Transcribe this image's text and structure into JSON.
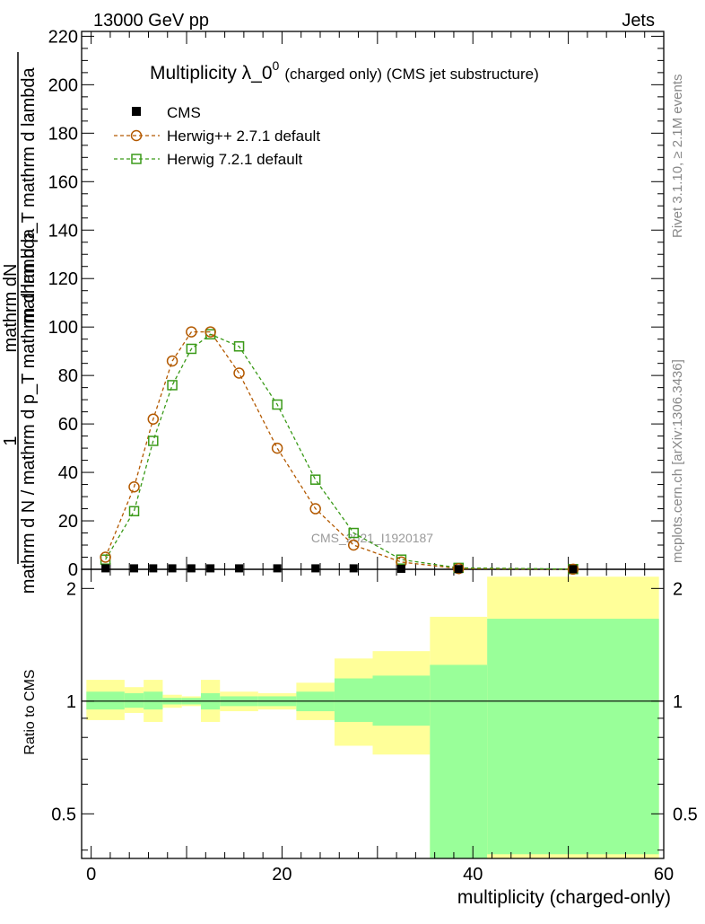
{
  "header": {
    "left": "13000 GeV pp",
    "right": "Jets"
  },
  "side": {
    "rivet": "Rivet 3.1.10, ≥ 2.1M events",
    "mcplots": "mcplots.cern.ch [arXiv:1306.3436]"
  },
  "watermark": "CMS_2021_I1920187",
  "chart_data": {
    "type": "line",
    "title": "Multiplicity λ_0",
    "title_sup": "0",
    "title_suffix": "(charged only) (CMS jet substructure)",
    "ylabel": {
      "num": "mathrm dN",
      "num2": "mathrm d p_T mathrm d lambda",
      "frac_prefix": "1",
      "den": "mathrm d N / mathrm d p_T mathrm d lambda"
    },
    "xlabel": "multiplicity (charged-only)",
    "xlim": [
      -1,
      60
    ],
    "ylim": [
      0,
      222
    ],
    "x_ticks": [
      0,
      20,
      40,
      60
    ],
    "y_ticks": [
      0,
      20,
      40,
      60,
      80,
      100,
      120,
      140,
      160,
      180,
      200,
      220
    ],
    "legend": [
      "CMS",
      "Herwig++ 2.7.1 default",
      "Herwig 7.2.1 default"
    ],
    "legend_position": "top-left",
    "colors": {
      "cms": "#000000",
      "herwigpp": "#b35900",
      "herwig7": "#3a9a18"
    },
    "cms": {
      "x": [
        1.5,
        4.5,
        6.5,
        8.5,
        10.5,
        12.5,
        15.5,
        19.5,
        23.5,
        27.5,
        32.5,
        38.5,
        50.5
      ],
      "y": [
        0.4,
        0.4,
        0.4,
        0.4,
        0.4,
        0.4,
        0.4,
        0.4,
        0.4,
        0.4,
        0.2,
        0.1,
        0.05
      ]
    },
    "herwigpp": {
      "x": [
        1.5,
        4.5,
        6.5,
        8.5,
        10.5,
        12.5,
        15.5,
        19.5,
        23.5,
        27.5,
        32.5,
        38.5,
        50.5
      ],
      "y": [
        5,
        34,
        62,
        86,
        98,
        98,
        81,
        50,
        25,
        10,
        3,
        0.3,
        0.05
      ]
    },
    "herwig7": {
      "x": [
        1.5,
        4.5,
        6.5,
        8.5,
        10.5,
        12.5,
        15.5,
        19.5,
        23.5,
        27.5,
        32.5,
        38.5,
        50.5
      ],
      "y": [
        4,
        24,
        53,
        76,
        91,
        97,
        92,
        68,
        37,
        15,
        4,
        0.6,
        0.1
      ]
    },
    "ratio": {
      "ylabel": "Ratio to CMS",
      "y_ticks": [
        0.5,
        1,
        2
      ],
      "y_tick_labels": [
        "0.5",
        "1",
        "2"
      ],
      "ylim": [
        0.38,
        2.25
      ],
      "bins": [
        {
          "lo": -0.5,
          "hi": 3.5,
          "stat": [
            0.95,
            1.06
          ],
          "total": [
            0.89,
            1.14
          ]
        },
        {
          "lo": 3.5,
          "hi": 5.5,
          "stat": [
            0.96,
            1.05
          ],
          "total": [
            0.93,
            1.09
          ]
        },
        {
          "lo": 5.5,
          "hi": 7.5,
          "stat": [
            0.95,
            1.06
          ],
          "total": [
            0.88,
            1.14
          ]
        },
        {
          "lo": 7.5,
          "hi": 9.5,
          "stat": [
            0.98,
            1.02
          ],
          "total": [
            0.96,
            1.04
          ]
        },
        {
          "lo": 9.5,
          "hi": 11.5,
          "stat": [
            0.98,
            1.02
          ],
          "total": [
            0.97,
            1.03
          ]
        },
        {
          "lo": 11.5,
          "hi": 13.5,
          "stat": [
            0.95,
            1.05
          ],
          "total": [
            0.88,
            1.14
          ]
        },
        {
          "lo": 13.5,
          "hi": 17.5,
          "stat": [
            0.97,
            1.03
          ],
          "total": [
            0.94,
            1.06
          ]
        },
        {
          "lo": 17.5,
          "hi": 21.5,
          "stat": [
            0.97,
            1.03
          ],
          "total": [
            0.95,
            1.05
          ]
        },
        {
          "lo": 21.5,
          "hi": 25.5,
          "stat": [
            0.94,
            1.06
          ],
          "total": [
            0.89,
            1.12
          ]
        },
        {
          "lo": 25.5,
          "hi": 29.5,
          "stat": [
            0.88,
            1.15
          ],
          "total": [
            0.76,
            1.3
          ]
        },
        {
          "lo": 29.5,
          "hi": 35.5,
          "stat": [
            0.86,
            1.17
          ],
          "total": [
            0.72,
            1.36
          ]
        },
        {
          "lo": 35.5,
          "hi": 41.5,
          "stat": [
            0.38,
            1.25
          ],
          "total": [
            0.38,
            1.68
          ]
        },
        {
          "lo": 41.5,
          "hi": 59.5,
          "stat": [
            0.39,
            1.66
          ],
          "total": [
            0.38,
            2.15
          ]
        }
      ]
    }
  }
}
